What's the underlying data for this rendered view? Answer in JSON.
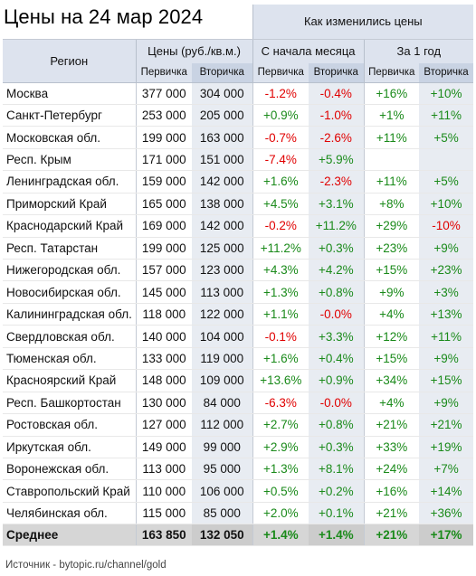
{
  "title": "Цены на 24 мар 2024",
  "header": {
    "region": "Регион",
    "prices_group": "Цены (руб./кв.м.)",
    "change_group": "Как изменились цены",
    "month_group": "С начала месяца",
    "year_group": "За 1 год",
    "primary": "Первичка",
    "secondary": "Вторичка"
  },
  "rows": [
    {
      "region": "Москва",
      "p1": "377 000",
      "p2": "304 000",
      "m1": "-1.2%",
      "m2": "-0.4%",
      "y1": "+16%",
      "y2": "+10%"
    },
    {
      "region": "Санкт-Петербург",
      "p1": "253 000",
      "p2": "205 000",
      "m1": "+0.9%",
      "m2": "-1.0%",
      "y1": "+1%",
      "y2": "+11%"
    },
    {
      "region": "Московская обл.",
      "p1": "199 000",
      "p2": "163 000",
      "m1": "-0.7%",
      "m2": "-2.6%",
      "y1": "+11%",
      "y2": "+5%"
    },
    {
      "region": "Респ. Крым",
      "p1": "171 000",
      "p2": "151 000",
      "m1": "-7.4%",
      "m2": "+5.9%",
      "y1": "",
      "y2": ""
    },
    {
      "region": "Ленинградская обл.",
      "p1": "159 000",
      "p2": "142 000",
      "m1": "+1.6%",
      "m2": "-2.3%",
      "y1": "+11%",
      "y2": "+5%"
    },
    {
      "region": "Приморский Край",
      "p1": "165 000",
      "p2": "138 000",
      "m1": "+4.5%",
      "m2": "+3.1%",
      "y1": "+8%",
      "y2": "+10%"
    },
    {
      "region": "Краснодарский Край",
      "p1": "169 000",
      "p2": "142 000",
      "m1": "-0.2%",
      "m2": "+11.2%",
      "y1": "+29%",
      "y2": "-10%"
    },
    {
      "region": "Респ. Татарстан",
      "p1": "199 000",
      "p2": "125 000",
      "m1": "+11.2%",
      "m2": "+0.3%",
      "y1": "+23%",
      "y2": "+9%"
    },
    {
      "region": "Нижегородская обл.",
      "p1": "157 000",
      "p2": "123 000",
      "m1": "+4.3%",
      "m2": "+4.2%",
      "y1": "+15%",
      "y2": "+23%"
    },
    {
      "region": "Новосибирская обл.",
      "p1": "145 000",
      "p2": "113 000",
      "m1": "+1.3%",
      "m2": "+0.8%",
      "y1": "+9%",
      "y2": "+3%"
    },
    {
      "region": "Калининградская обл.",
      "p1": "118 000",
      "p2": "122 000",
      "m1": "+1.1%",
      "m2": "-0.0%",
      "y1": "+4%",
      "y2": "+13%"
    },
    {
      "region": "Свердловская обл.",
      "p1": "140 000",
      "p2": "104 000",
      "m1": "-0.1%",
      "m2": "+3.3%",
      "y1": "+12%",
      "y2": "+11%"
    },
    {
      "region": "Тюменская обл.",
      "p1": "133 000",
      "p2": "119 000",
      "m1": "+1.6%",
      "m2": "+0.4%",
      "y1": "+15%",
      "y2": "+9%"
    },
    {
      "region": "Красноярский Край",
      "p1": "148 000",
      "p2": "109 000",
      "m1": "+13.6%",
      "m2": "+0.9%",
      "y1": "+34%",
      "y2": "+15%"
    },
    {
      "region": "Респ. Башкортостан",
      "p1": "130 000",
      "p2": "84 000",
      "m1": "-6.3%",
      "m2": "-0.0%",
      "y1": "+4%",
      "y2": "+9%"
    },
    {
      "region": "Ростовская обл.",
      "p1": "127 000",
      "p2": "112 000",
      "m1": "+2.7%",
      "m2": "+0.8%",
      "y1": "+21%",
      "y2": "+21%"
    },
    {
      "region": "Иркутская обл.",
      "p1": "149 000",
      "p2": "99 000",
      "m1": "+2.9%",
      "m2": "+0.3%",
      "y1": "+33%",
      "y2": "+19%"
    },
    {
      "region": "Воронежская обл.",
      "p1": "113 000",
      "p2": "95 000",
      "m1": "+1.3%",
      "m2": "+8.1%",
      "y1": "+24%",
      "y2": "+7%"
    },
    {
      "region": "Ставропольский Край",
      "p1": "110 000",
      "p2": "106 000",
      "m1": "+0.5%",
      "m2": "+0.2%",
      "y1": "+16%",
      "y2": "+14%"
    },
    {
      "region": "Челябинская обл.",
      "p1": "115 000",
      "p2": "85 000",
      "m1": "+2.0%",
      "m2": "+0.1%",
      "y1": "+21%",
      "y2": "+36%"
    }
  ],
  "average": {
    "region": "Среднее",
    "p1": "163 850",
    "p2": "132 050",
    "m1": "+1.4%",
    "m2": "+1.4%",
    "y1": "+21%",
    "y2": "+17%"
  },
  "source": "Источник - bytopic.ru/channel/gold",
  "colors": {
    "negative": "#e00000",
    "positive": "#1a8a1a",
    "header_bg": "#dde3ee"
  }
}
